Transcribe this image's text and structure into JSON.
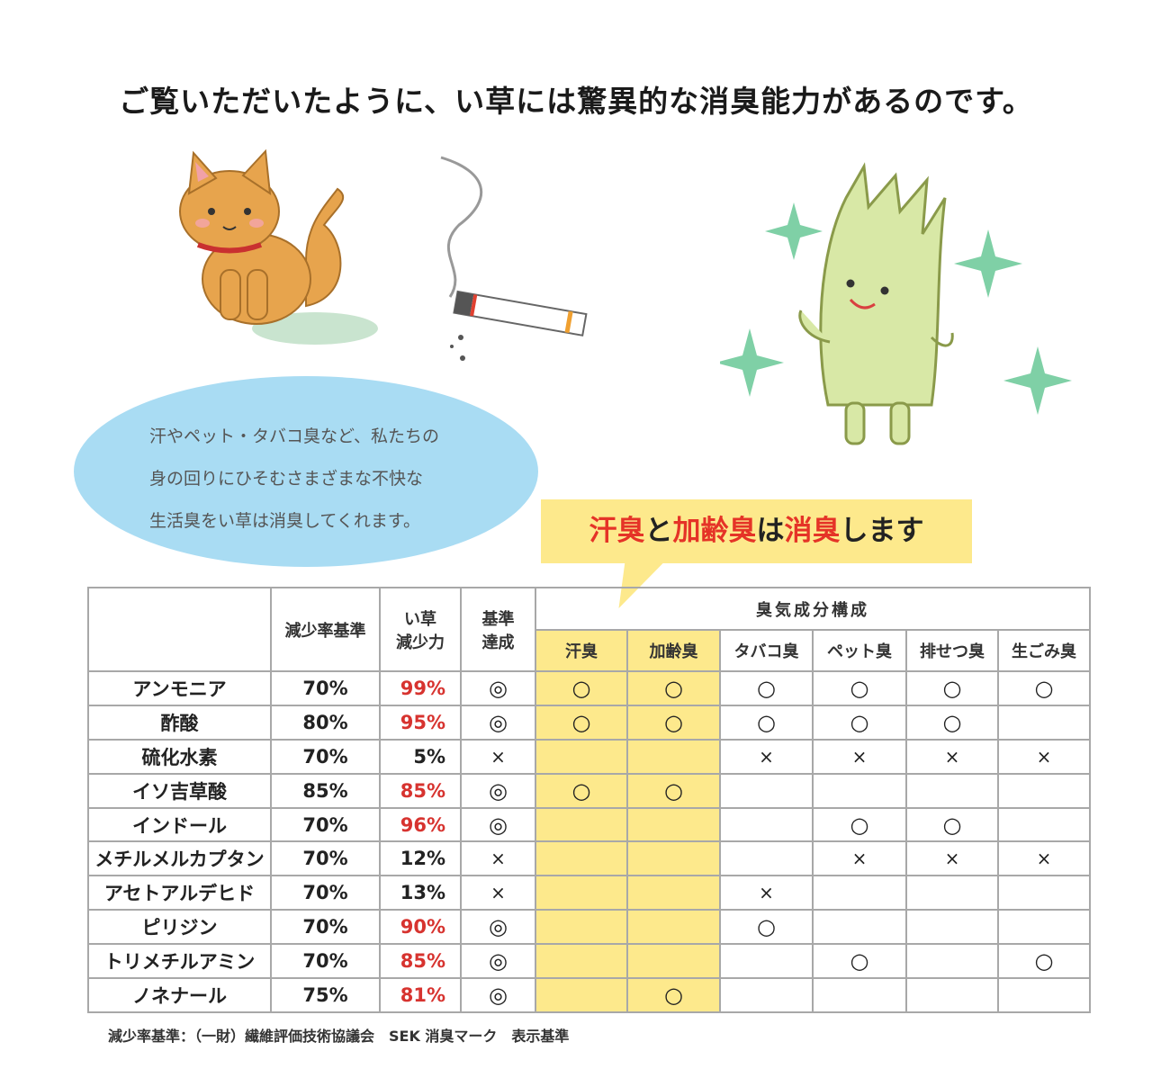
{
  "title": "ご覧いただいたように、い草には驚異的な消臭能力があるのです。",
  "bubble": {
    "lines": [
      "汗やペット・タバコ臭など、私たちの",
      "身の回りにひそむさまざまな不快な",
      "生活臭をい草は消臭してくれます。"
    ]
  },
  "callout": {
    "parts": [
      "汗臭",
      "と",
      "加齢臭",
      "は",
      "消臭",
      "します"
    ],
    "accent_color": "#e53327",
    "background": "#fde98c"
  },
  "table": {
    "headers": {
      "standard": "減少率基準",
      "reduction": [
        "い草",
        "減少力"
      ],
      "achieved": [
        "基準",
        "達成"
      ],
      "group": "臭気成分構成",
      "odors": [
        "汗臭",
        "加齢臭",
        "タバコ臭",
        "ペット臭",
        "排せつ臭",
        "生ごみ臭"
      ]
    },
    "highlight_columns": [
      "汗臭",
      "加齢臭"
    ],
    "rows": [
      {
        "name": "アンモニア",
        "standard": "70%",
        "reduction": "99%",
        "achieved": "◎",
        "marks": [
          "○",
          "○",
          "○",
          "○",
          "○",
          "○"
        ]
      },
      {
        "name": "酢酸",
        "standard": "80%",
        "reduction": "95%",
        "achieved": "◎",
        "marks": [
          "○",
          "○",
          "○",
          "○",
          "○",
          ""
        ]
      },
      {
        "name": "硫化水素",
        "standard": "70%",
        "reduction": "5%",
        "achieved": "×",
        "marks": [
          "",
          "",
          "×",
          "×",
          "×",
          "×"
        ]
      },
      {
        "name": "イソ吉草酸",
        "standard": "85%",
        "reduction": "85%",
        "achieved": "◎",
        "marks": [
          "○",
          "○",
          "",
          "",
          "",
          ""
        ]
      },
      {
        "name": "インドール",
        "standard": "70%",
        "reduction": "96%",
        "achieved": "◎",
        "marks": [
          "",
          "",
          "",
          "○",
          "○",
          ""
        ]
      },
      {
        "name": "メチルメルカプタン",
        "standard": "70%",
        "reduction": "12%",
        "achieved": "×",
        "marks": [
          "",
          "",
          "",
          "×",
          "×",
          "×"
        ]
      },
      {
        "name": "アセトアルデヒド",
        "standard": "70%",
        "reduction": "13%",
        "achieved": "×",
        "marks": [
          "",
          "",
          "×",
          "",
          "",
          ""
        ]
      },
      {
        "name": "ピリジン",
        "standard": "70%",
        "reduction": "90%",
        "achieved": "◎",
        "marks": [
          "",
          "",
          "○",
          "",
          "",
          ""
        ]
      },
      {
        "name": "トリメチルアミン",
        "standard": "70%",
        "reduction": "85%",
        "achieved": "◎",
        "marks": [
          "",
          "",
          "",
          "○",
          "",
          "○"
        ]
      },
      {
        "name": "ノネナール",
        "standard": "75%",
        "reduction": "81%",
        "achieved": "◎",
        "marks": [
          "",
          "○",
          "",
          "",
          "",
          ""
        ]
      }
    ]
  },
  "footnote": "減少率基準：（一財）繊維評価技術協議会　SEK 消臭マーク　表示基準"
}
